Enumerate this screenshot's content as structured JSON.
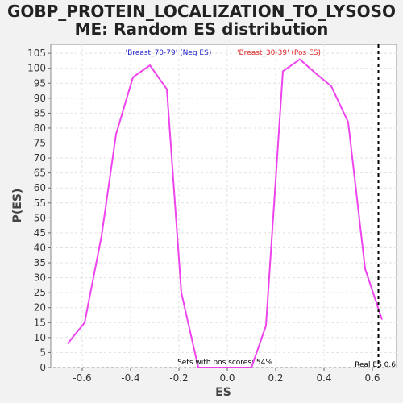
{
  "chart_data": {
    "type": "line",
    "title_line1": "GOBP_PROTEIN_LOCALIZATION_TO_LYSOSO",
    "title_line2": "ME: Random ES distribution",
    "xlabel": "ES",
    "ylabel": "P(ES)",
    "xlim": [
      -0.73,
      0.7
    ],
    "ylim": [
      0,
      108
    ],
    "x_ticks": [
      -0.6,
      -0.4,
      -0.2,
      0.0,
      0.2,
      0.4,
      0.6
    ],
    "x_tick_labels": [
      "-0.6",
      "-0.4",
      "-0.2",
      "0.0",
      "0.2",
      "0.4",
      "0.6"
    ],
    "y_ticks": [
      0,
      5,
      10,
      15,
      20,
      25,
      30,
      35,
      40,
      45,
      50,
      55,
      60,
      65,
      70,
      75,
      80,
      85,
      90,
      95,
      100,
      105
    ],
    "y_tick_labels": [
      "0",
      "5",
      "10",
      "15",
      "20",
      "25",
      "30",
      "35",
      "40",
      "45",
      "50",
      "55",
      "60",
      "65",
      "70",
      "75",
      "80",
      "85",
      "90",
      "95",
      "100",
      "105"
    ],
    "grid": true,
    "series": [
      {
        "color": "#ee44ee",
        "x": [
          -0.66,
          -0.59,
          -0.52,
          -0.46,
          -0.39,
          -0.32,
          -0.25,
          -0.19,
          -0.12,
          0.1,
          0.16,
          0.23,
          0.3,
          0.37,
          0.43,
          0.5,
          0.57,
          0.64
        ],
        "y": [
          8,
          15,
          44,
          78,
          97,
          101,
          93,
          25,
          0,
          0,
          14,
          99,
          103,
          98,
          94,
          82,
          33,
          16
        ]
      }
    ],
    "real_es": 0.625,
    "legend_neg": "'Breast_70-79' (Neg ES)",
    "legend_pos": "'Breast_30-39' (Pos ES)",
    "legend_neg_color": "#2222cc",
    "legend_pos_color": "#dd2222",
    "annotation_sets": "Sets with pos scores: 54%",
    "annotation_real_es": "Real ES 0.6"
  }
}
